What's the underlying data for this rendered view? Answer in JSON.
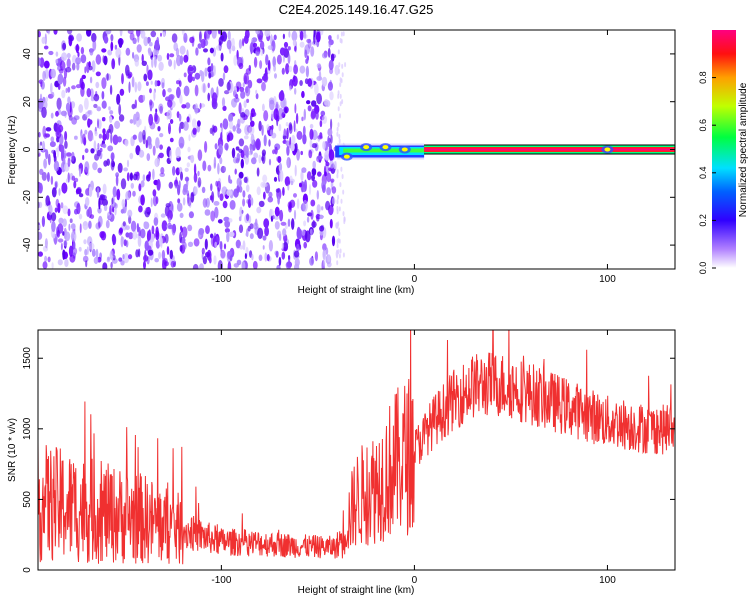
{
  "title": "C2E4.2025.149.16.47.G25",
  "chart_data": [
    {
      "type": "heatmap",
      "title": "C2E4.2025.149.16.47.G25",
      "xlabel": "Height of straight line (km)",
      "ylabel": "Frequency (Hz)",
      "xlim": [
        -195,
        135
      ],
      "ylim": [
        -50,
        50
      ],
      "x_ticks": [
        -100,
        0,
        100
      ],
      "y_ticks": [
        -40,
        -20,
        0,
        20,
        40
      ],
      "colorbar": {
        "label": "Normalized spectral amplitude",
        "range": [
          0,
          1
        ],
        "ticks": [
          "0.0",
          "0.2",
          "0.4",
          "0.6",
          "0.8"
        ],
        "colors": [
          "#ffffff",
          "#7a00ff",
          "#0000ff",
          "#00ffff",
          "#00ff00",
          "#ffff00",
          "#ff0000",
          "#ff0080"
        ]
      },
      "regions": [
        {
          "x_start": -195,
          "x_end": -40,
          "description_level": 0.1
        },
        {
          "x_start": -40,
          "x_end": 135,
          "carrier_freq": 0
        }
      ]
    },
    {
      "type": "line",
      "xlabel": "Height of straight line (km)",
      "ylabel": "SNR (10 * v/v)",
      "xlim": [
        -195,
        135
      ],
      "ylim": [
        0,
        1700
      ],
      "x_ticks": [
        -100,
        0,
        100
      ],
      "y_ticks": [
        0,
        500,
        1000,
        1500
      ],
      "color": "#f03030",
      "x": [
        -195,
        -180,
        -160,
        -140,
        -120,
        -100,
        -80,
        -60,
        -40,
        -30,
        -20,
        -10,
        0,
        10,
        20,
        30,
        40,
        50,
        60,
        70,
        80,
        90,
        100,
        110,
        120,
        135
      ],
      "y": [
        480,
        450,
        400,
        360,
        280,
        200,
        190,
        170,
        160,
        500,
        600,
        750,
        850,
        1050,
        1200,
        1300,
        1320,
        1300,
        1250,
        1200,
        1150,
        1100,
        1050,
        1030,
        1000,
        990
      ]
    }
  ]
}
